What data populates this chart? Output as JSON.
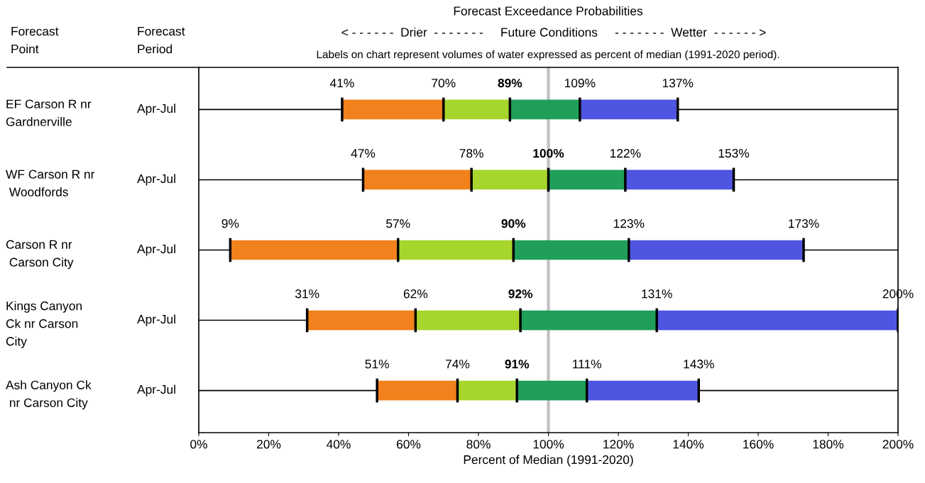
{
  "chart_data": {
    "type": "bar",
    "orientation": "horizontal",
    "title": "Forecast Exceedance Probabilities",
    "subtitle": "< - - - - - -  Drier  - - - - - - -     Future Conditions     - - - - - - -  Wetter  - - - - - - >",
    "xlabel": "Percent of Median (1991-2020)",
    "categories": [
      "EF Carson R nr\nGardnerville",
      "WF Carson R nr\n Woodfords",
      "Carson R nr\n Carson City",
      "Kings Canyon\nCk nr Carson\nCity",
      "Ash Canyon Ck\n nr Carson City"
    ],
    "y2_categories": [
      "Apr-Jul",
      "Apr-Jul",
      "Apr-Jul",
      "Apr-Jul",
      "Apr-Jul"
    ],
    "series": [
      {
        "color": "#f0811c",
        "base": [
          41,
          47,
          9,
          31,
          51
        ],
        "values": [
          29,
          31,
          48,
          31,
          23
        ]
      },
      {
        "color": "#a6d62c",
        "base": [
          70,
          78,
          57,
          62,
          74
        ],
        "values": [
          19,
          22,
          33,
          30,
          17
        ]
      },
      {
        "color": "#1f9f5a",
        "base": [
          89,
          100,
          90,
          92,
          91
        ],
        "values": [
          20,
          22,
          33,
          39,
          20
        ]
      },
      {
        "color": "#4f55e0",
        "base": [
          109,
          122,
          123,
          131,
          111
        ],
        "values": [
          28,
          31,
          50,
          69,
          32
        ]
      }
    ],
    "xlim": [
      0,
      200
    ],
    "xticks": [
      {
        "value": 0,
        "label": "0%"
      },
      {
        "value": 20,
        "label": "20%"
      },
      {
        "value": 40,
        "label": "40%"
      },
      {
        "value": 60,
        "label": "60%"
      },
      {
        "value": 80,
        "label": "80%"
      },
      {
        "value": 100,
        "label": "100%"
      },
      {
        "value": 120,
        "label": "120%"
      },
      {
        "value": 140,
        "label": "140%"
      },
      {
        "value": 160,
        "label": "160%"
      },
      {
        "value": 180,
        "label": "180%"
      },
      {
        "value": 200,
        "label": "200%"
      }
    ],
    "ref_lines": [
      {
        "axis": "x",
        "value": 100,
        "color": "#c0c0c0"
      }
    ],
    "annotations": [
      "Forecast\nPoint",
      "Forecast\nPeriod",
      "Labels on chart represent volumes of water expressed as percent of median (1991-2020 period).",
      {
        "text": "41%",
        "x": 41,
        "y": "EF Carson R nr\nGardnerville"
      },
      {
        "text": "70%",
        "x": 70,
        "y": "EF Carson R nr\nGardnerville"
      },
      {
        "text": "89%",
        "x": 89,
        "y": "EF Carson R nr\nGardnerville"
      },
      {
        "text": "109%",
        "x": 109,
        "y": "EF Carson R nr\nGardnerville"
      },
      {
        "text": "137%",
        "x": 137,
        "y": "EF Carson R nr\nGardnerville"
      },
      {
        "text": "47%",
        "x": 47,
        "y": "WF Carson R nr\n Woodfords"
      },
      {
        "text": "78%",
        "x": 78,
        "y": "WF Carson R nr\n Woodfords"
      },
      {
        "text": "100%",
        "x": 100,
        "y": "WF Carson R nr\n Woodfords"
      },
      {
        "text": "122%",
        "x": 122,
        "y": "WF Carson R nr\n Woodfords"
      },
      {
        "text": "153%",
        "x": 153,
        "y": "WF Carson R nr\n Woodfords"
      },
      {
        "text": "9%",
        "x": 9,
        "y": "Carson R nr\n Carson City"
      },
      {
        "text": "57%",
        "x": 57,
        "y": "Carson R nr\n Carson City"
      },
      {
        "text": "90%",
        "x": 90,
        "y": "Carson R nr\n Carson City"
      },
      {
        "text": "123%",
        "x": 123,
        "y": "Carson R nr\n Carson City"
      },
      {
        "text": "173%",
        "x": 173,
        "y": "Carson R nr\n Carson City"
      },
      {
        "text": "31%",
        "x": 31,
        "y": "Kings Canyon\nCk nr Carson\nCity"
      },
      {
        "text": "62%",
        "x": 62,
        "y": "Kings Canyon\nCk nr Carson\nCity"
      },
      {
        "text": "92%",
        "x": 92,
        "y": "Kings Canyon\nCk nr Carson\nCity"
      },
      {
        "text": "131%",
        "x": 131,
        "y": "Kings Canyon\nCk nr Carson\nCity"
      },
      {
        "text": "200%",
        "x": 200,
        "y": "Kings Canyon\nCk nr Carson\nCity"
      },
      {
        "text": "51%",
        "x": 51,
        "y": "Ash Canyon Ck\n nr Carson City"
      },
      {
        "text": "74%",
        "x": 74,
        "y": "Ash Canyon Ck\n nr Carson City"
      },
      {
        "text": "91%",
        "x": 91,
        "y": "Ash Canyon Ck\n nr Carson City"
      },
      {
        "text": "111%",
        "x": 111,
        "y": "Ash Canyon Ck\n nr Carson City"
      },
      {
        "text": "143%",
        "x": 143,
        "y": "Ash Canyon Ck\n nr Carson City"
      }
    ]
  }
}
